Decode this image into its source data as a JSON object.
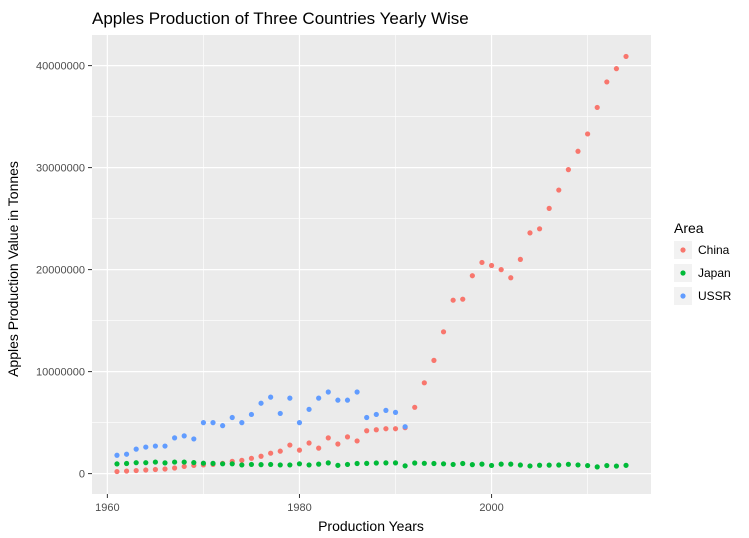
{
  "chart_data": {
    "type": "scatter",
    "title": "Apples Production of Three Countries Yearly Wise",
    "xlabel": "Production Years",
    "ylabel": "Apples Production Value in Tonnes",
    "xlim": [
      1958.4,
      2016.6
    ],
    "ylim": [
      -2000000,
      43000000
    ],
    "x_ticks": [
      1960,
      1980,
      2000
    ],
    "x_tick_labels": [
      "1960",
      "1980",
      "2000"
    ],
    "x_minor_ticks": [
      1970,
      1990,
      2010
    ],
    "y_ticks": [
      0,
      10000000,
      20000000,
      30000000,
      40000000
    ],
    "y_tick_labels": [
      "0",
      "10000000",
      "20000000",
      "30000000",
      "40000000"
    ],
    "y_minor_ticks": [
      5000000,
      15000000,
      25000000,
      35000000
    ],
    "legend": {
      "title": "Area",
      "position": "right"
    },
    "series": [
      {
        "name": "China",
        "color": "#F8766D",
        "x": [
          1961,
          1962,
          1963,
          1964,
          1965,
          1966,
          1967,
          1968,
          1969,
          1970,
          1971,
          1972,
          1973,
          1974,
          1975,
          1976,
          1977,
          1978,
          1979,
          1980,
          1981,
          1982,
          1983,
          1984,
          1985,
          1986,
          1987,
          1988,
          1989,
          1990,
          1991,
          1992,
          1993,
          1994,
          1995,
          1996,
          1997,
          1998,
          1999,
          2000,
          2001,
          2002,
          2003,
          2004,
          2005,
          2006,
          2007,
          2008,
          2009,
          2010,
          2011,
          2012,
          2013,
          2014
        ],
        "values": [
          200000,
          250000,
          300000,
          350000,
          400000,
          450000,
          550000,
          700000,
          800000,
          850000,
          900000,
          1000000,
          1200000,
          1300000,
          1500000,
          1700000,
          2000000,
          2200000,
          2800000,
          2300000,
          3000000,
          2500000,
          3500000,
          2900000,
          3600000,
          3200000,
          4200000,
          4300000,
          4400000,
          4400000,
          4500000,
          6500000,
          8900000,
          11100000,
          13900000,
          17000000,
          17100000,
          19400000,
          20700000,
          20400000,
          20000000,
          19200000,
          21000000,
          23600000,
          24000000,
          26000000,
          27800000,
          29800000,
          31600000,
          33300000,
          35900000,
          38400000,
          39700000,
          40900000
        ]
      },
      {
        "name": "Japan",
        "color": "#00BA38",
        "x": [
          1961,
          1962,
          1963,
          1964,
          1965,
          1966,
          1967,
          1968,
          1969,
          1970,
          1971,
          1972,
          1973,
          1974,
          1975,
          1976,
          1977,
          1978,
          1979,
          1980,
          1981,
          1982,
          1983,
          1984,
          1985,
          1986,
          1987,
          1988,
          1989,
          1990,
          1991,
          1992,
          1993,
          1994,
          1995,
          1996,
          1997,
          1998,
          1999,
          2000,
          2001,
          2002,
          2003,
          2004,
          2005,
          2006,
          2007,
          2008,
          2009,
          2010,
          2011,
          2012,
          2013,
          2014
        ],
        "values": [
          950000,
          990000,
          1070000,
          1070000,
          1130000,
          1050000,
          1130000,
          1130000,
          1080000,
          1020000,
          1000000,
          960000,
          960000,
          850000,
          900000,
          880000,
          900000,
          850000,
          850000,
          960000,
          850000,
          930000,
          1050000,
          810000,
          900000,
          990000,
          1000000,
          1040000,
          1050000,
          1050000,
          760000,
          1040000,
          1010000,
          990000,
          960000,
          900000,
          990000,
          880000,
          930000,
          800000,
          930000,
          930000,
          840000,
          750000,
          820000,
          830000,
          840000,
          910000,
          850000,
          790000,
          660000,
          790000,
          740000,
          810000
        ]
      },
      {
        "name": "USSR",
        "color": "#619CFF",
        "x": [
          1961,
          1962,
          1963,
          1964,
          1965,
          1966,
          1967,
          1968,
          1969,
          1970,
          1971,
          1972,
          1973,
          1974,
          1975,
          1976,
          1977,
          1978,
          1979,
          1980,
          1981,
          1982,
          1983,
          1984,
          1985,
          1986,
          1987,
          1988,
          1989,
          1990,
          1991
        ],
        "values": [
          1800000,
          1900000,
          2400000,
          2600000,
          2700000,
          2700000,
          3500000,
          3700000,
          3400000,
          5000000,
          5000000,
          4700000,
          5500000,
          5000000,
          5800000,
          6900000,
          7500000,
          5900000,
          7400000,
          5000000,
          6300000,
          7400000,
          8000000,
          7200000,
          7200000,
          8000000,
          5500000,
          5800000,
          6200000,
          6000000,
          4600000
        ]
      }
    ]
  }
}
